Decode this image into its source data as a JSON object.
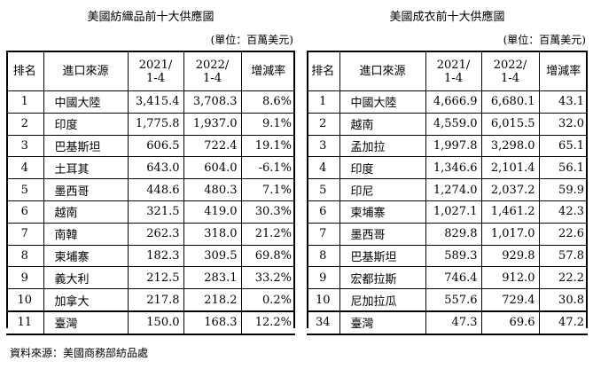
{
  "left": {
    "title": "美國紡織品前十大供應國",
    "unit": "(單位：百萬美元)",
    "headers": [
      "排名",
      "進口來源",
      "2021/\n1-4",
      "2022/\n1-4",
      "增減率"
    ],
    "rows": [
      [
        "1",
        "中國大陸",
        "3,415.4",
        "3,708.3",
        "8.6%"
      ],
      [
        "2",
        "印度",
        "1,775.8",
        "1,937.0",
        "9.1%"
      ],
      [
        "3",
        "巴基斯坦",
        "606.5",
        "722.4",
        "19.1%"
      ],
      [
        "4",
        "土耳其",
        "643.0",
        "604.0",
        "-6.1%"
      ],
      [
        "5",
        "墨西哥",
        "448.6",
        "480.3",
        "7.1%"
      ],
      [
        "6",
        "越南",
        "321.5",
        "419.0",
        "30.3%"
      ],
      [
        "7",
        "南韓",
        "262.3",
        "318.0",
        "21.2%"
      ],
      [
        "8",
        "柬埔寨",
        "182.3",
        "309.5",
        "69.8%"
      ],
      [
        "9",
        "義大利",
        "212.5",
        "283.1",
        "33.2%"
      ],
      [
        "10",
        "加拿大",
        "217.8",
        "218.2",
        "0.2%"
      ],
      [
        "11",
        "臺灣",
        "150.0",
        "168.3",
        "12.2%"
      ]
    ]
  },
  "right": {
    "title": "美國成衣前十大供應國",
    "unit": "(單位：百萬美元)",
    "headers": [
      "排名",
      "進口來源",
      "2021/\n1-4",
      "2022/\n1-4",
      "增減率"
    ],
    "rows": [
      [
        "1",
        "中國大陸",
        "4,666.9",
        "6,680.1",
        "43.1"
      ],
      [
        "2",
        "越南",
        "4,559.0",
        "6,015.5",
        "32.0"
      ],
      [
        "3",
        "孟加拉",
        "1,997.8",
        "3,298.0",
        "65.1"
      ],
      [
        "4",
        "印度",
        "1,346.6",
        "2,101.4",
        "56.1"
      ],
      [
        "5",
        "印尼",
        "1,274.0",
        "2,037.2",
        "59.9"
      ],
      [
        "6",
        "柬埔寨",
        "1,027.1",
        "1,461.2",
        "42.3"
      ],
      [
        "7",
        "墨西哥",
        "829.8",
        "1,017.0",
        "22.6"
      ],
      [
        "8",
        "巴基斯坦",
        "589.3",
        "929.8",
        "57.8"
      ],
      [
        "9",
        "宏都拉斯",
        "746.4",
        "912.0",
        "22.2"
      ],
      [
        "10",
        "尼加拉瓜",
        "557.6",
        "729.4",
        "30.8"
      ],
      [
        "34",
        "臺灣",
        "47.3",
        "69.6",
        "47.2"
      ]
    ]
  },
  "source": "資料來源：美國商務部紡品處"
}
